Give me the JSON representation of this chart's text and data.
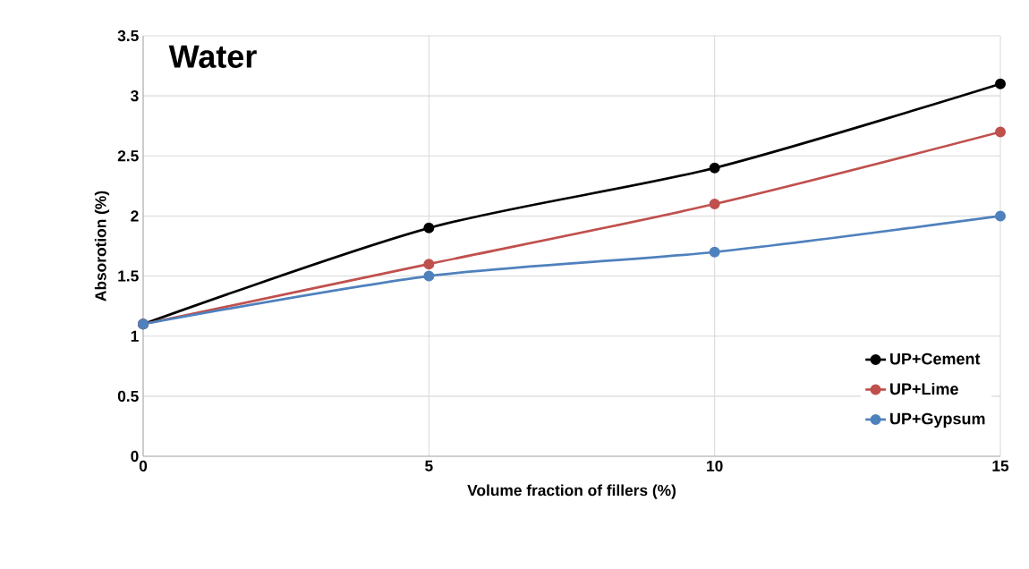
{
  "chart_data": {
    "type": "line",
    "title": "Water",
    "xlabel": "Volume fraction of fillers (%)",
    "ylabel": "Absorotion (%)",
    "x": [
      0,
      5,
      10,
      15
    ],
    "series": [
      {
        "name": "UP+Cement",
        "color": "#000000",
        "values": [
          1.1,
          1.9,
          2.4,
          3.1
        ]
      },
      {
        "name": "UP+Lime",
        "color": "#c0504d",
        "values": [
          1.1,
          1.6,
          2.1,
          2.7
        ]
      },
      {
        "name": "UP+Gypsum",
        "color": "#4f81bd",
        "values": [
          1.1,
          1.5,
          1.7,
          2.0
        ]
      }
    ],
    "xlim": [
      0,
      15
    ],
    "ylim": [
      0,
      3.5
    ],
    "xticks": [
      0,
      5,
      10,
      15
    ],
    "yticks": [
      0,
      0.5,
      1,
      1.5,
      2,
      2.5,
      3,
      3.5
    ],
    "grid": true,
    "legend": "bottom right",
    "marker": "circle",
    "line_style": "solid"
  }
}
